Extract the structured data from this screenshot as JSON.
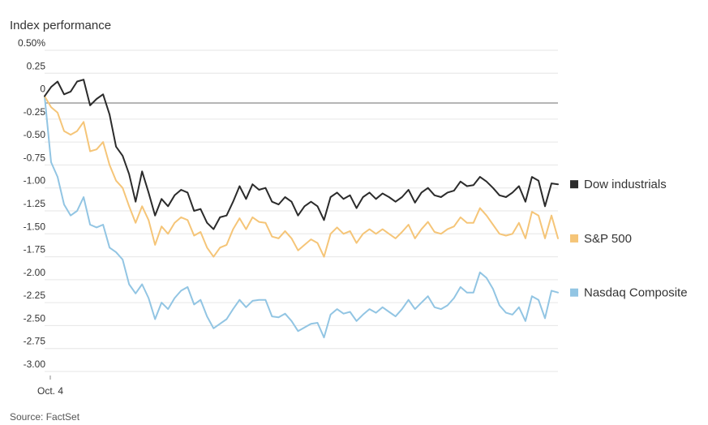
{
  "chart_data": {
    "type": "line",
    "title": "Index performance",
    "source": "Source: FactSet",
    "ylim": [
      -3.0,
      0.5
    ],
    "yticks": [
      0.5,
      0.25,
      0,
      -0.25,
      -0.5,
      -0.75,
      -1.0,
      -1.25,
      -1.5,
      -1.75,
      -2.0,
      -2.25,
      -2.5,
      -2.75,
      -3.0
    ],
    "ytick_labels": [
      "0.50%",
      "0.25",
      "0",
      "-0.25",
      "-0.50",
      "-0.75",
      "-1.00",
      "-1.25",
      "-1.50",
      "-1.75",
      "-2.00",
      "-2.25",
      "-2.50",
      "-2.75",
      "-3.00"
    ],
    "xtick_labels": [
      "Oct. 4"
    ],
    "grid": true,
    "legend_position": "right",
    "series": [
      {
        "name": "Dow industrials",
        "color": "#2b2b2b",
        "values": [
          0,
          0.1,
          0.16,
          0.02,
          0.05,
          0.16,
          0.18,
          -0.1,
          -0.03,
          0.02,
          -0.2,
          -0.55,
          -0.65,
          -0.85,
          -1.15,
          -0.82,
          -1.05,
          -1.3,
          -1.12,
          -1.2,
          -1.08,
          -1.02,
          -1.05,
          -1.25,
          -1.23,
          -1.38,
          -1.45,
          -1.32,
          -1.3,
          -1.15,
          -0.98,
          -1.12,
          -0.96,
          -1.02,
          -1.0,
          -1.15,
          -1.18,
          -1.1,
          -1.15,
          -1.3,
          -1.2,
          -1.15,
          -1.2,
          -1.35,
          -1.1,
          -1.05,
          -1.12,
          -1.08,
          -1.22,
          -1.1,
          -1.05,
          -1.12,
          -1.06,
          -1.1,
          -1.15,
          -1.1,
          -1.02,
          -1.16,
          -1.05,
          -1.0,
          -1.08,
          -1.1,
          -1.05,
          -1.03,
          -0.93,
          -0.98,
          -0.97,
          -0.88,
          -0.93,
          -1.0,
          -1.08,
          -1.1,
          -1.05,
          -0.98,
          -1.15,
          -0.88,
          -0.92,
          -1.2,
          -0.95,
          -0.96
        ]
      },
      {
        "name": "S&P 500",
        "color": "#f5c578",
        "values": [
          0,
          -0.12,
          -0.18,
          -0.38,
          -0.42,
          -0.38,
          -0.28,
          -0.6,
          -0.58,
          -0.5,
          -0.75,
          -0.92,
          -1.0,
          -1.2,
          -1.38,
          -1.2,
          -1.35,
          -1.62,
          -1.42,
          -1.5,
          -1.38,
          -1.32,
          -1.35,
          -1.52,
          -1.48,
          -1.65,
          -1.75,
          -1.65,
          -1.62,
          -1.45,
          -1.33,
          -1.45,
          -1.32,
          -1.37,
          -1.38,
          -1.53,
          -1.55,
          -1.47,
          -1.55,
          -1.68,
          -1.62,
          -1.56,
          -1.6,
          -1.75,
          -1.5,
          -1.43,
          -1.5,
          -1.47,
          -1.6,
          -1.5,
          -1.45,
          -1.5,
          -1.45,
          -1.5,
          -1.55,
          -1.48,
          -1.4,
          -1.55,
          -1.45,
          -1.37,
          -1.48,
          -1.5,
          -1.45,
          -1.42,
          -1.32,
          -1.38,
          -1.38,
          -1.22,
          -1.3,
          -1.4,
          -1.5,
          -1.52,
          -1.5,
          -1.38,
          -1.55,
          -1.26,
          -1.3,
          -1.55,
          -1.3,
          -1.55
        ]
      },
      {
        "name": "Nasdaq Composite",
        "color": "#92c5e3",
        "values": [
          0,
          -0.72,
          -0.88,
          -1.18,
          -1.3,
          -1.25,
          -1.1,
          -1.4,
          -1.43,
          -1.4,
          -1.65,
          -1.7,
          -1.78,
          -2.05,
          -2.15,
          -2.05,
          -2.2,
          -2.43,
          -2.25,
          -2.32,
          -2.2,
          -2.12,
          -2.08,
          -2.27,
          -2.22,
          -2.4,
          -2.53,
          -2.48,
          -2.43,
          -2.32,
          -2.22,
          -2.3,
          -2.23,
          -2.22,
          -2.22,
          -2.4,
          -2.41,
          -2.37,
          -2.45,
          -2.56,
          -2.52,
          -2.48,
          -2.47,
          -2.63,
          -2.38,
          -2.32,
          -2.37,
          -2.35,
          -2.45,
          -2.38,
          -2.32,
          -2.36,
          -2.3,
          -2.35,
          -2.4,
          -2.32,
          -2.22,
          -2.32,
          -2.25,
          -2.18,
          -2.3,
          -2.32,
          -2.28,
          -2.2,
          -2.08,
          -2.14,
          -2.14,
          -1.92,
          -1.98,
          -2.1,
          -2.28,
          -2.36,
          -2.38,
          -2.3,
          -2.45,
          -2.18,
          -2.22,
          -2.42,
          -2.12,
          -2.14
        ]
      }
    ]
  }
}
